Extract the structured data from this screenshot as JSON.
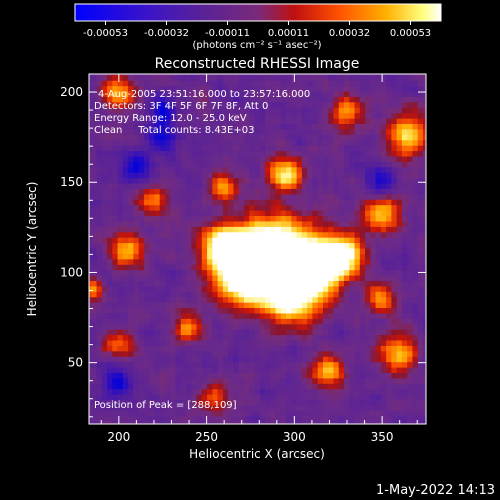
{
  "colorbar": {
    "ticks": [
      "-0.00053",
      "-0.00032",
      "-0.00011",
      "0.00011",
      "0.00032",
      "0.00053"
    ],
    "unit_label": "(photons cm⁻² s⁻¹ asec⁻²)",
    "range": [
      -0.00053,
      0.00053
    ]
  },
  "chart_data": {
    "type": "heatmap",
    "title": "Reconstructed RHESSI Image",
    "xlabel": "Heliocentric X (arcsec)",
    "ylabel": "Heliocentric Y (arcsec)",
    "xlim": [
      183,
      375
    ],
    "ylim": [
      16,
      210
    ],
    "xticks": [
      200,
      250,
      300,
      350
    ],
    "yticks": [
      50,
      100,
      150,
      200
    ],
    "annotations": [
      "4-Aug-2005 23:51:16.000 to 23:57:16.000",
      "Detectors: 3F 4F 5F 6F 7F 8F, Att 0",
      "Energy Range: 12.0 - 25.0 keV",
      "Clean     Total counts: 8.43E+03"
    ],
    "peak_label": "Position of Peak = [288,109]",
    "peak": [
      288,
      109
    ],
    "emission_sources": [
      {
        "x": 286,
        "y": 109,
        "sigma": 14,
        "amp": 1.0
      },
      {
        "x": 312,
        "y": 104,
        "sigma": 12,
        "amp": 0.75
      },
      {
        "x": 270,
        "y": 100,
        "sigma": 12,
        "amp": 0.7
      },
      {
        "x": 300,
        "y": 86,
        "sigma": 11,
        "amp": 0.6
      },
      {
        "x": 330,
        "y": 110,
        "sigma": 8,
        "amp": 0.55
      },
      {
        "x": 258,
        "y": 116,
        "sigma": 8,
        "amp": 0.55
      },
      {
        "x": 295,
        "y": 155,
        "sigma": 7,
        "amp": 0.55
      },
      {
        "x": 205,
        "y": 113,
        "sigma": 7,
        "amp": 0.5
      },
      {
        "x": 365,
        "y": 176,
        "sigma": 9,
        "amp": 0.55
      },
      {
        "x": 350,
        "y": 133,
        "sigma": 8,
        "amp": 0.45
      },
      {
        "x": 330,
        "y": 190,
        "sigma": 7,
        "amp": 0.45
      },
      {
        "x": 200,
        "y": 200,
        "sigma": 7,
        "amp": 0.45
      },
      {
        "x": 260,
        "y": 148,
        "sigma": 6,
        "amp": 0.4
      },
      {
        "x": 220,
        "y": 140,
        "sigma": 6,
        "amp": 0.4
      },
      {
        "x": 360,
        "y": 55,
        "sigma": 8,
        "amp": 0.45
      },
      {
        "x": 320,
        "y": 45,
        "sigma": 7,
        "amp": 0.45
      },
      {
        "x": 240,
        "y": 70,
        "sigma": 6,
        "amp": 0.4
      },
      {
        "x": 200,
        "y": 60,
        "sigma": 6,
        "amp": 0.35
      },
      {
        "x": 255,
        "y": 30,
        "sigma": 6,
        "amp": 0.35
      },
      {
        "x": 350,
        "y": 85,
        "sigma": 6,
        "amp": 0.4
      },
      {
        "x": 185,
        "y": 90,
        "sigma": 5,
        "amp": 0.35
      }
    ],
    "dark_sources": [
      {
        "x": 225,
        "y": 175,
        "sigma": 6,
        "amp": 0.35
      },
      {
        "x": 210,
        "y": 160,
        "sigma": 6,
        "amp": 0.3
      },
      {
        "x": 350,
        "y": 150,
        "sigma": 6,
        "amp": 0.3
      },
      {
        "x": 200,
        "y": 40,
        "sigma": 6,
        "amp": 0.3
      },
      {
        "x": 225,
        "y": 190,
        "sigma": 5,
        "amp": 0.35
      }
    ],
    "grid": false,
    "colormap": [
      "#0000ff",
      "#3c14c8",
      "#5a2296",
      "#6a2a8a",
      "#7a3080",
      "#b01020",
      "#e02000",
      "#ff6400",
      "#ffb400",
      "#ffff80",
      "#ffffff"
    ]
  },
  "footer": {
    "timestamp": "1-May-2022 14:13"
  }
}
